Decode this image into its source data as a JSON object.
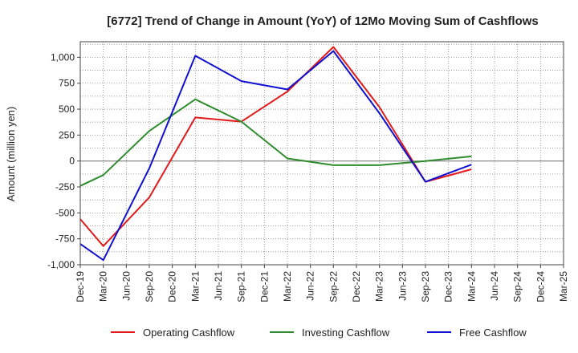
{
  "chart_data": {
    "type": "line",
    "title": "[6772]  Trend of Change in Amount (YoY) of 12Mo Moving Sum of Cashflows",
    "ylabel": "Amount (million yen)",
    "xlabel": "",
    "ylim": [
      -1000,
      1150
    ],
    "yticks": [
      -1000,
      -750,
      -500,
      -250,
      0,
      250,
      500,
      750,
      1000
    ],
    "ytick_labels": [
      "-1,000",
      "-750",
      "-500",
      "-250",
      "0",
      "250",
      "500",
      "750",
      "1,000"
    ],
    "categories": [
      "Dec-19",
      "Mar-20",
      "Jun-20",
      "Sep-20",
      "Dec-20",
      "Mar-21",
      "Jun-21",
      "Sep-21",
      "Dec-21",
      "Mar-22",
      "Jun-22",
      "Sep-22",
      "Dec-22",
      "Mar-23",
      "Jun-23",
      "Sep-23",
      "Dec-23",
      "Mar-24",
      "Jun-24",
      "Sep-24",
      "Dec-24",
      "Mar-25"
    ],
    "grid": true,
    "legend_position": "bottom",
    "series": [
      {
        "name": "Operating Cashflow",
        "color": "#e31a1c",
        "values": [
          -560,
          -820,
          null,
          -350,
          null,
          420,
          null,
          380,
          null,
          670,
          null,
          1100,
          null,
          520,
          null,
          -200,
          null,
          -80,
          null,
          null,
          null,
          null
        ]
      },
      {
        "name": "Investing Cashflow",
        "color": "#2e8b2e",
        "values": [
          -240,
          -135,
          null,
          290,
          null,
          595,
          null,
          380,
          null,
          25,
          null,
          -40,
          null,
          -40,
          null,
          0,
          null,
          45,
          null,
          null,
          null,
          null
        ]
      },
      {
        "name": "Free Cashflow",
        "color": "#1010d0",
        "values": [
          -800,
          -955,
          null,
          -70,
          null,
          1015,
          null,
          770,
          null,
          690,
          null,
          1060,
          null,
          460,
          null,
          -200,
          null,
          -35,
          null,
          null,
          null,
          null
        ]
      }
    ]
  }
}
